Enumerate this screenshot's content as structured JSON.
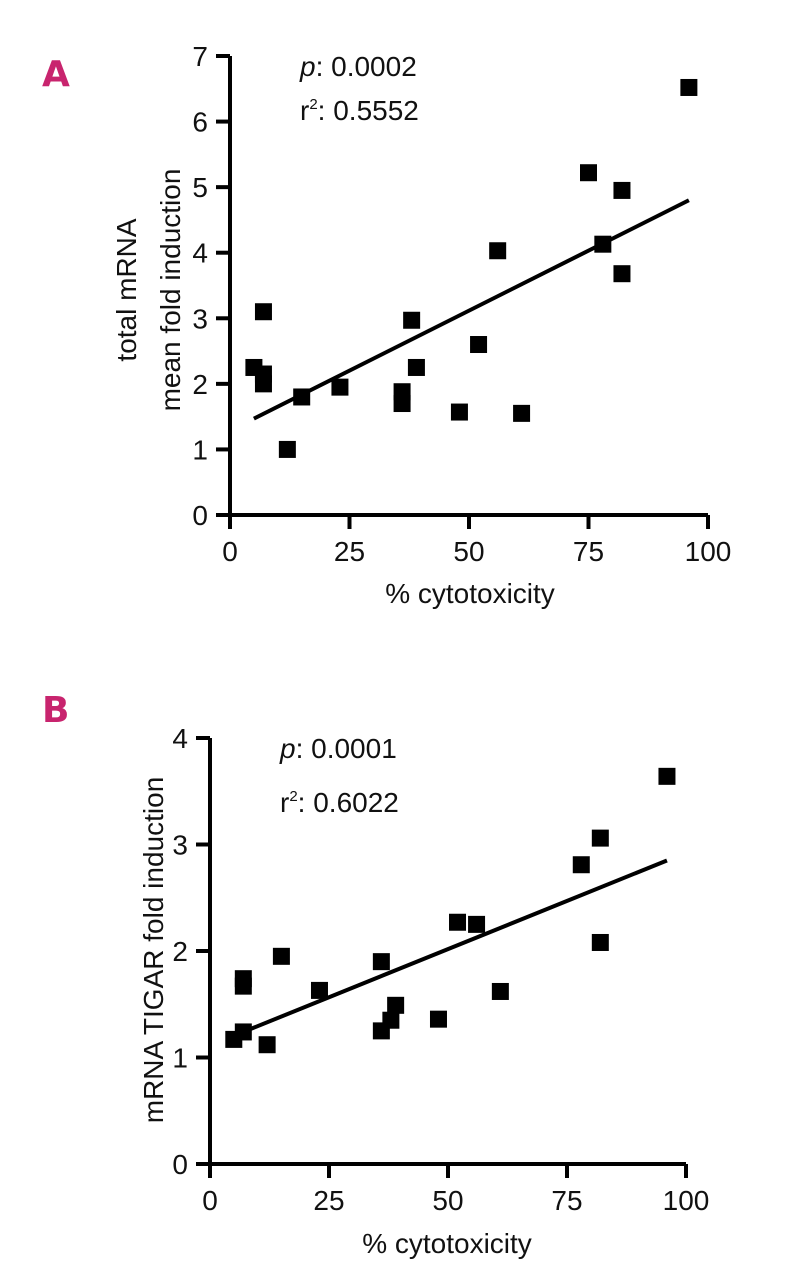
{
  "chart_data": [
    {
      "type": "scatter",
      "panel_label": "A",
      "xlabel": "% cytotoxicity",
      "ylabel_lines": [
        "total mRNA",
        "mean fold induction"
      ],
      "xlim": [
        0,
        100
      ],
      "ylim": [
        0,
        7
      ],
      "xticks": [
        0,
        25,
        50,
        75,
        100
      ],
      "yticks": [
        0,
        1,
        2,
        3,
        4,
        5,
        6,
        7
      ],
      "stats": {
        "p_symbol": "p",
        "p_value": ": 0.0002",
        "r_symbol": "r",
        "r_sup": "2",
        "r2_value": ": 0.5552"
      },
      "points": [
        {
          "x": 5,
          "y": 2.25
        },
        {
          "x": 7,
          "y": 3.1
        },
        {
          "x": 7,
          "y": 2.15
        },
        {
          "x": 7,
          "y": 2.0
        },
        {
          "x": 12,
          "y": 1.0
        },
        {
          "x": 15,
          "y": 1.8
        },
        {
          "x": 23,
          "y": 1.95
        },
        {
          "x": 36,
          "y": 1.88
        },
        {
          "x": 36,
          "y": 1.7
        },
        {
          "x": 38,
          "y": 2.97
        },
        {
          "x": 39,
          "y": 2.25
        },
        {
          "x": 48,
          "y": 1.57
        },
        {
          "x": 52,
          "y": 2.6
        },
        {
          "x": 56,
          "y": 4.03
        },
        {
          "x": 61,
          "y": 1.55
        },
        {
          "x": 75,
          "y": 5.22
        },
        {
          "x": 78,
          "y": 4.13
        },
        {
          "x": 82,
          "y": 4.95
        },
        {
          "x": 82,
          "y": 3.68
        },
        {
          "x": 96,
          "y": 6.52
        }
      ],
      "fit_line": {
        "x": [
          5,
          96
        ],
        "y": [
          1.47,
          4.8
        ]
      }
    },
    {
      "type": "scatter",
      "panel_label": "B",
      "xlabel": "% cytotoxicity",
      "ylabel_lines": [
        "mRNA TIGAR fold induction"
      ],
      "xlim": [
        0,
        100
      ],
      "ylim": [
        0,
        4
      ],
      "xticks": [
        0,
        25,
        50,
        75,
        100
      ],
      "yticks": [
        0,
        1,
        2,
        3,
        4
      ],
      "stats": {
        "p_symbol": "p",
        "p_value": ": 0.0001",
        "r_symbol": "r",
        "r_sup": "2",
        "r2_value": ": 0.6022"
      },
      "points": [
        {
          "x": 5,
          "y": 1.17
        },
        {
          "x": 7,
          "y": 1.74
        },
        {
          "x": 7,
          "y": 1.67
        },
        {
          "x": 7,
          "y": 1.24
        },
        {
          "x": 12,
          "y": 1.12
        },
        {
          "x": 15,
          "y": 1.95
        },
        {
          "x": 23,
          "y": 1.63
        },
        {
          "x": 36,
          "y": 1.9
        },
        {
          "x": 36,
          "y": 1.25
        },
        {
          "x": 38,
          "y": 1.35
        },
        {
          "x": 39,
          "y": 1.49
        },
        {
          "x": 48,
          "y": 1.36
        },
        {
          "x": 52,
          "y": 2.27
        },
        {
          "x": 56,
          "y": 2.25
        },
        {
          "x": 61,
          "y": 1.62
        },
        {
          "x": 78,
          "y": 2.81
        },
        {
          "x": 82,
          "y": 3.06
        },
        {
          "x": 82,
          "y": 2.08
        },
        {
          "x": 96,
          "y": 3.64
        }
      ],
      "fit_line": {
        "x": [
          7,
          96
        ],
        "y": [
          1.24,
          2.85
        ]
      }
    }
  ]
}
